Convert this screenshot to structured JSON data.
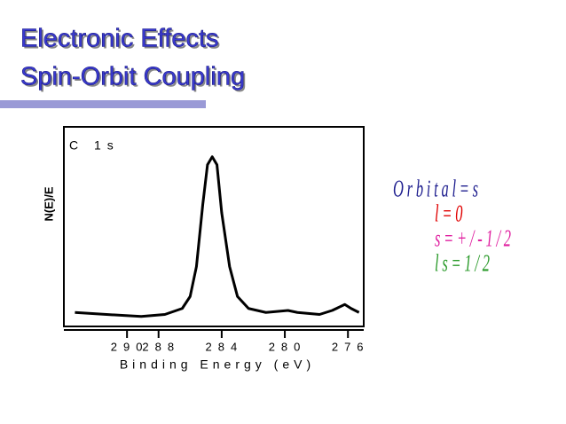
{
  "slide": {
    "title_lines": [
      "Electronic Effects",
      "Spin-Orbit Coupling"
    ]
  },
  "chart_data": {
    "type": "line",
    "title": "C 1s",
    "ylabel": "N(E)/E",
    "xlabel": "Binding Energy (eV)",
    "x": [
      293.3,
      291.3,
      289.1,
      287.6,
      286.5,
      286.0,
      285.6,
      285.2,
      284.9,
      284.6,
      284.3,
      284.0,
      283.5,
      283.0,
      282.3,
      281.2,
      279.8,
      279.2,
      277.8,
      277.0,
      276.2,
      275.8,
      275.3
    ],
    "series": [
      {
        "name": "C 1s",
        "color": "#000000",
        "values": [
          7,
          6,
          5,
          6,
          9,
          15,
          30,
          61,
          81,
          85,
          81,
          57,
          30,
          15,
          9,
          7,
          8,
          7,
          6,
          8,
          11,
          9,
          7
        ]
      }
    ],
    "xlim": [
      294,
      275
    ],
    "xticks": [
      290,
      288,
      284,
      280,
      276
    ],
    "ylim": [
      0,
      100
    ],
    "annotations": [
      {
        "text": "Orbital=s",
        "color": "#1f1f8f"
      },
      {
        "text": "l=0",
        "color": "#e00000"
      },
      {
        "text": "s=+/-1/2",
        "color": "#e020a0"
      },
      {
        "text": "ls=1/2",
        "color": "#2a9a2a"
      }
    ]
  }
}
